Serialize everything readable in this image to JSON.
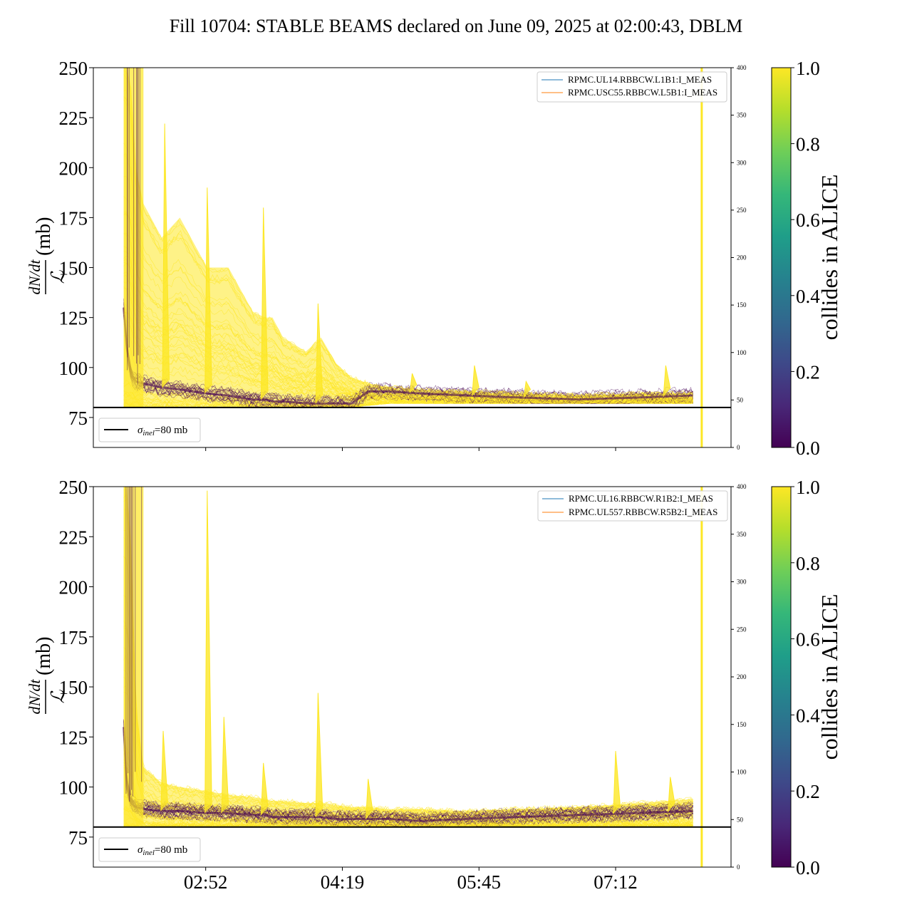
{
  "figure": {
    "title": "Fill 10704: STABLE BEAMS declared on June 09, 2025 at 02:00:43, DBLM"
  },
  "colors": {
    "viridis": [
      "#440154",
      "#482878",
      "#3e4989",
      "#31688e",
      "#26828e",
      "#1f9e89",
      "#35b779",
      "#6ece58",
      "#b5de2b",
      "#fde725"
    ],
    "legend_line_1": "#1f77b4",
    "legend_line_2": "#ff7f0e",
    "reference_line": "#000000"
  },
  "chart_data": [
    {
      "type": "line",
      "panel": "top",
      "ylabel_numerator": "dN/dt",
      "ylabel_denominator": "ℒ",
      "ylabel_unit": "(mb)",
      "ylim": [
        60,
        250
      ],
      "yticks": [
        75,
        100,
        125,
        150,
        175,
        200,
        225,
        250
      ],
      "y2lim": [
        0,
        400
      ],
      "y2ticks": [
        0,
        50,
        100,
        150,
        200,
        250,
        300,
        350,
        400
      ],
      "xlim_minutes": [
        0,
        420
      ],
      "xticks": [],
      "xtick_labels": [],
      "reference_line": {
        "y": 80,
        "label": "σ_inel=80 mb"
      },
      "legend": [
        "RPMC.UL14.RBBCW.L1B1:I_MEAS",
        "RPMC.USC55.RBBCW.L5B1:I_MEAS"
      ],
      "legend_placement": "top-right",
      "reference_legend_placement": "bottom-left",
      "colorbar": {
        "label": "collides in ALICE",
        "range": [
          0.0,
          1.0
        ],
        "ticks": [
          "0.0",
          "0.2",
          "0.4",
          "0.6",
          "0.8",
          "1.0"
        ]
      },
      "envelope": {
        "x_minutes": [
          20,
          22,
          25,
          28,
          33,
          45,
          57,
          75,
          89,
          105,
          113,
          118,
          125,
          140,
          150,
          160,
          170,
          181,
          195,
          215,
          245,
          280,
          320,
          360,
          395,
          400,
          401
        ],
        "yellow_upper": [
          250,
          250,
          240,
          200,
          182,
          165,
          175,
          150,
          150,
          128,
          125,
          125,
          115,
          108,
          115,
          102,
          95,
          92,
          90,
          89,
          88,
          87,
          86,
          87,
          87,
          250,
          250
        ],
        "dark_band": [
          130,
          110,
          96,
          93,
          92,
          90,
          89,
          87,
          86,
          84,
          84,
          83,
          83,
          82,
          82,
          82,
          82,
          88,
          88,
          87,
          86,
          85,
          84,
          85,
          86,
          86,
          86
        ],
        "lower": [
          80,
          80,
          80,
          80,
          80,
          80,
          80,
          80,
          80,
          80,
          80,
          80,
          80,
          80,
          80,
          80,
          80,
          81,
          82,
          82,
          82,
          82,
          82,
          82,
          82,
          82,
          82
        ]
      },
      "spikes": [
        {
          "x_minutes": 47,
          "y": 222
        },
        {
          "x_minutes": 75,
          "y": 190
        },
        {
          "x_minutes": 112,
          "y": 180
        },
        {
          "x_minutes": 148,
          "y": 132
        },
        {
          "x_minutes": 210,
          "y": 97
        },
        {
          "x_minutes": 251,
          "y": 101
        },
        {
          "x_minutes": 285,
          "y": 93
        },
        {
          "x_minutes": 377,
          "y": 101
        }
      ]
    },
    {
      "type": "line",
      "panel": "bottom",
      "ylabel_numerator": "dN/dt",
      "ylabel_denominator": "ℒ",
      "ylabel_unit": "(mb)",
      "ylim": [
        60,
        250
      ],
      "yticks": [
        75,
        100,
        125,
        150,
        175,
        200,
        225,
        250
      ],
      "y2lim": [
        0,
        400
      ],
      "y2ticks": [
        0,
        50,
        100,
        150,
        200,
        250,
        300,
        350,
        400
      ],
      "xlim_minutes": [
        0,
        420
      ],
      "xticks": [
        74,
        164,
        254,
        344
      ],
      "xtick_labels": [
        "02:52",
        "04:19",
        "05:45",
        "07:12"
      ],
      "reference_line": {
        "y": 80,
        "label": "σ_inel=80 mb"
      },
      "legend": [
        "RPMC.UL16.RBBCW.R1B2:I_MEAS",
        "RPMC.UL557.RBBCW.R5B2:I_MEAS"
      ],
      "legend_placement": "top-right",
      "reference_legend_placement": "bottom-left",
      "colorbar": {
        "label": "collides in ALICE",
        "range": [
          0.0,
          1.0
        ],
        "ticks": [
          "0.0",
          "0.2",
          "0.4",
          "0.6",
          "0.8",
          "1.0"
        ]
      },
      "envelope": {
        "x_minutes": [
          20,
          22,
          25,
          28,
          33,
          45,
          57,
          75,
          89,
          105,
          113,
          118,
          125,
          140,
          150,
          160,
          170,
          181,
          195,
          215,
          245,
          280,
          320,
          360,
          395,
          400,
          401
        ],
        "yellow_upper": [
          250,
          250,
          220,
          140,
          110,
          102,
          100,
          98,
          96,
          95,
          94,
          93,
          93,
          92,
          92,
          91,
          90,
          90,
          89,
          89,
          88,
          89,
          90,
          92,
          94,
          250,
          250
        ],
        "dark_band": [
          130,
          100,
          92,
          90,
          89,
          88,
          88,
          87,
          87,
          86,
          86,
          85,
          85,
          85,
          85,
          84,
          84,
          84,
          84,
          83,
          84,
          85,
          86,
          87,
          88,
          88,
          88
        ],
        "lower": [
          80,
          80,
          80,
          80,
          80,
          80,
          80,
          80,
          80,
          80,
          80,
          80,
          80,
          80,
          80,
          80,
          80,
          80,
          80,
          80,
          80,
          80,
          80,
          80,
          80,
          80,
          80
        ]
      },
      "spikes": [
        {
          "x_minutes": 46,
          "y": 128
        },
        {
          "x_minutes": 75,
          "y": 248
        },
        {
          "x_minutes": 86,
          "y": 135
        },
        {
          "x_minutes": 112,
          "y": 112
        },
        {
          "x_minutes": 148,
          "y": 147
        },
        {
          "x_minutes": 181,
          "y": 104
        },
        {
          "x_minutes": 344,
          "y": 118
        },
        {
          "x_minutes": 380,
          "y": 105
        }
      ]
    }
  ]
}
